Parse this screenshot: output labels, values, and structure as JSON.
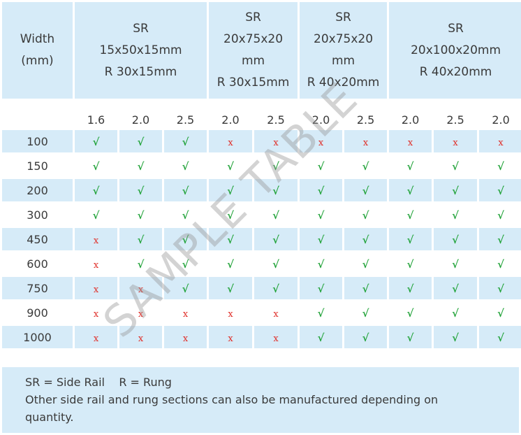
{
  "header": {
    "width_label": "Width\n(mm)",
    "groups": [
      "SR\n15x50x15mm\nR 30x15mm",
      "SR\n20x75x20\nmm\nR 30x15mm",
      "SR\n20x75x20\nmm\nR 40x20mm",
      "SR\n20x100x20mm\nR 40x20mm"
    ]
  },
  "thicknesses": [
    "1.6",
    "2.0",
    "2.5",
    "2.0",
    "2.5",
    "2.0",
    "2.5",
    "2.0",
    "2.5",
    "2.0"
  ],
  "rows": [
    {
      "width": "100",
      "marks": [
        "√",
        "√",
        "√",
        "x",
        "x",
        "x",
        "x",
        "x",
        "x",
        "x"
      ]
    },
    {
      "width": "150",
      "marks": [
        "√",
        "√",
        "√",
        "√",
        "√",
        "√",
        "√",
        "√",
        "√",
        "√"
      ]
    },
    {
      "width": "200",
      "marks": [
        "√",
        "√",
        "√",
        "√",
        "√",
        "√",
        "√",
        "√",
        "√",
        "√"
      ]
    },
    {
      "width": "300",
      "marks": [
        "√",
        "√",
        "√",
        "√",
        "√",
        "√",
        "√",
        "√",
        "√",
        "√"
      ]
    },
    {
      "width": "450",
      "marks": [
        "x",
        "√",
        "√",
        "√",
        "√",
        "√",
        "√",
        "√",
        "√",
        "√"
      ]
    },
    {
      "width": "600",
      "marks": [
        "x",
        "√",
        "√",
        "√",
        "√",
        "√",
        "√",
        "√",
        "√",
        "√"
      ]
    },
    {
      "width": "750",
      "marks": [
        "x",
        "x",
        "√",
        "√",
        "√",
        "√",
        "√",
        "√",
        "√",
        "√"
      ]
    },
    {
      "width": "900",
      "marks": [
        "x",
        "x",
        "x",
        "x",
        "x",
        "√",
        "√",
        "√",
        "√",
        "√"
      ]
    },
    {
      "width": "1000",
      "marks": [
        "x",
        "x",
        "x",
        "x",
        "x",
        "√",
        "√",
        "√",
        "√",
        "√"
      ]
    }
  ],
  "note": {
    "line1": "SR = Side Rail    R = Rung",
    "line2": "Other side rail and rung sections can also be manufactured depending on",
    "line3": "quantity."
  },
  "watermark": "SAMPLE TABLE",
  "colors": {
    "shade": "#d6ebf8",
    "yes": "#22a33a",
    "no": "#e0302a"
  }
}
